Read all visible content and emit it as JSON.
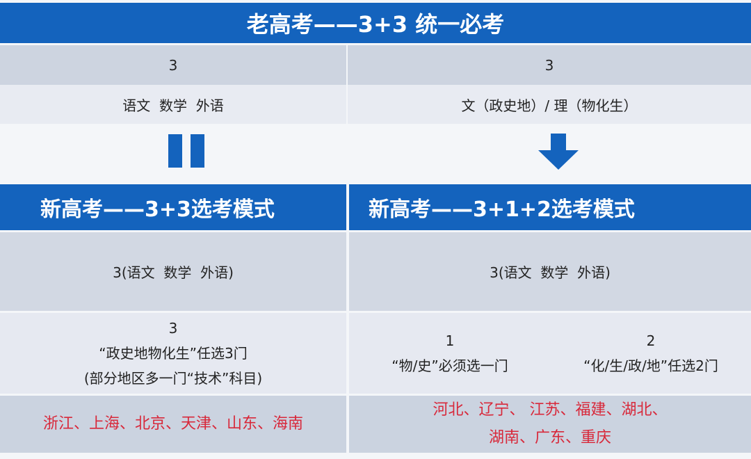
{
  "old": {
    "title": "老高考——3+3 统一必考",
    "left_count": "3",
    "right_count": "3",
    "left_subjects": "语文  数学  外语",
    "right_subjects": "文（政史地）/ 理（物化生）"
  },
  "new_33": {
    "title": "新高考——3+3选考模式",
    "required": "3(语文  数学  外语)",
    "elective_count": "3",
    "elective_text": "“政史地物化生”任选3门",
    "elective_note": "(部分地区多一门“技术”科目)",
    "regions": "浙江、上海、北京、天津、山东、海南"
  },
  "new_312": {
    "title": "新高考——3+1+2选考模式",
    "required": "3(语文  数学  外语)",
    "first_count": "1",
    "first_text": "“物/史”必须选一门",
    "second_count": "2",
    "second_text": "“化/生/政/地”任选2门",
    "regions_line1": "河北、辽宁、 江苏、福建、湖北、",
    "regions_line2": "湖南、广东、重庆"
  },
  "icons": {
    "left": "equals-bars-icon",
    "right": "arrow-down-icon"
  },
  "colors": {
    "header_blue": "#1463bd",
    "region_red": "#d8283a"
  }
}
